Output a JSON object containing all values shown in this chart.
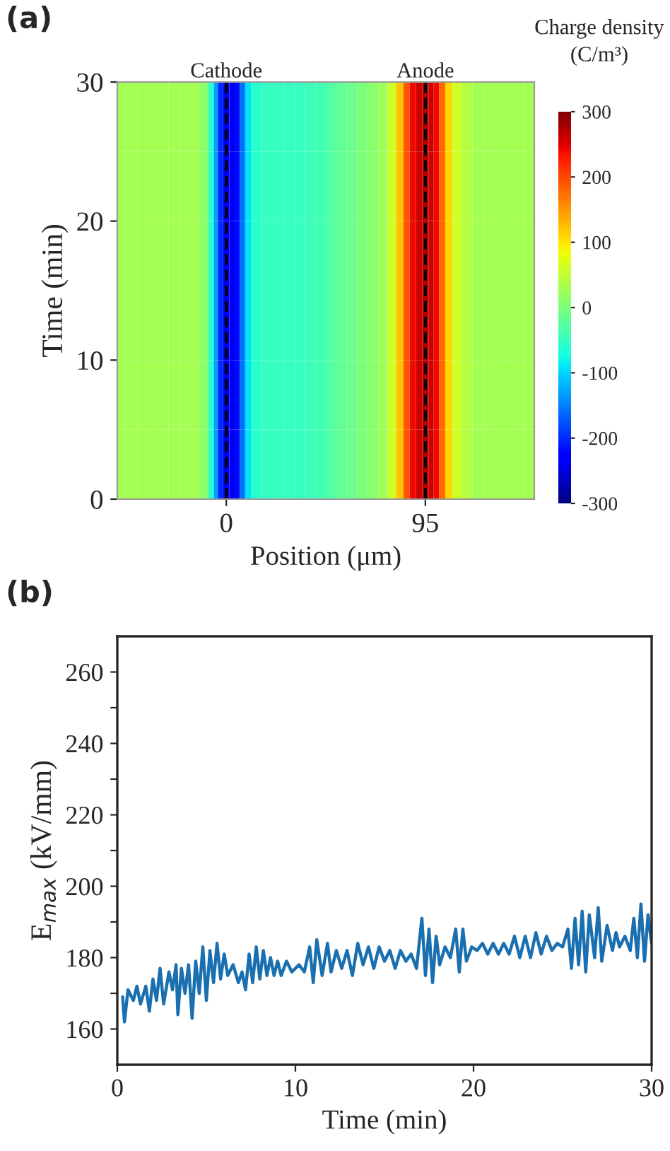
{
  "chart_data": [
    {
      "type": "heatmap",
      "annotations": [
        "(a)"
      ],
      "xlabel": "Position (μm)",
      "ylabel": "Time (min)",
      "clabel": "Charge density\n(C/m³)",
      "x": [
        -50,
        -45,
        -40,
        -35,
        -30,
        -25,
        -20,
        -15,
        -10,
        -7,
        -5,
        -3,
        0,
        3,
        5,
        8,
        10,
        14,
        20,
        25,
        30,
        35,
        40,
        45,
        50,
        55,
        60,
        65,
        70,
        75,
        79,
        83,
        86,
        89,
        92,
        95,
        98,
        100,
        103,
        106,
        110,
        115,
        120,
        125,
        130,
        135,
        140,
        145
      ],
      "cells": [
        [
          30,
          30,
          30,
          30,
          30,
          30,
          30,
          30,
          10,
          -60,
          -130,
          -200,
          -240,
          -235,
          -220,
          -160,
          -90,
          -60,
          -50,
          -50,
          -50,
          -50,
          -45,
          -40,
          -30,
          -20,
          -10,
          0,
          10,
          25,
          60,
          120,
          190,
          240,
          260,
          270,
          260,
          240,
          180,
          110,
          60,
          40,
          30,
          30,
          30,
          30,
          30,
          30
        ],
        [
          30,
          30,
          30,
          30,
          30,
          30,
          30,
          30,
          10,
          -60,
          -130,
          -200,
          -240,
          -235,
          -220,
          -160,
          -90,
          -60,
          -50,
          -50,
          -50,
          -50,
          -45,
          -40,
          -30,
          -20,
          -10,
          0,
          10,
          25,
          60,
          120,
          190,
          240,
          260,
          270,
          260,
          240,
          180,
          110,
          60,
          40,
          30,
          30,
          30,
          30,
          30,
          30
        ],
        [
          30,
          30,
          30,
          30,
          30,
          30,
          30,
          30,
          10,
          -60,
          -130,
          -200,
          -240,
          -235,
          -220,
          -160,
          -90,
          -60,
          -50,
          -50,
          -50,
          -50,
          -45,
          -40,
          -30,
          -20,
          -10,
          0,
          10,
          25,
          60,
          120,
          190,
          240,
          260,
          270,
          260,
          240,
          180,
          110,
          60,
          40,
          30,
          30,
          30,
          30,
          30,
          30
        ],
        [
          30,
          30,
          30,
          30,
          30,
          30,
          30,
          30,
          10,
          -60,
          -130,
          -200,
          -240,
          -235,
          -220,
          -160,
          -90,
          -60,
          -50,
          -50,
          -50,
          -50,
          -45,
          -40,
          -30,
          -20,
          -10,
          0,
          10,
          25,
          60,
          120,
          190,
          240,
          260,
          270,
          260,
          240,
          180,
          110,
          60,
          40,
          30,
          30,
          30,
          30,
          30,
          30
        ],
        [
          30,
          30,
          30,
          30,
          30,
          30,
          30,
          30,
          10,
          -60,
          -130,
          -200,
          -240,
          -235,
          -220,
          -160,
          -90,
          -60,
          -50,
          -50,
          -50,
          -50,
          -45,
          -40,
          -30,
          -20,
          -10,
          0,
          10,
          25,
          60,
          120,
          190,
          240,
          260,
          270,
          260,
          240,
          180,
          110,
          60,
          40,
          30,
          30,
          30,
          30,
          30,
          30
        ],
        [
          30,
          30,
          30,
          30,
          30,
          30,
          30,
          30,
          10,
          -60,
          -130,
          -200,
          -240,
          -235,
          -220,
          -160,
          -90,
          -60,
          -50,
          -50,
          -50,
          -50,
          -45,
          -40,
          -30,
          -20,
          -10,
          0,
          10,
          25,
          60,
          120,
          190,
          240,
          260,
          270,
          260,
          240,
          180,
          110,
          60,
          40,
          30,
          30,
          30,
          30,
          30,
          30
        ]
      ],
      "xlim": [
        -52,
        147
      ],
      "xticks": [
        0,
        95
      ],
      "ylim": [
        0,
        30
      ],
      "yticks": [
        0,
        10,
        20,
        30
      ],
      "clim": [
        -300,
        300
      ],
      "cticks": [
        -300,
        -200,
        -100,
        0,
        100,
        200,
        300
      ],
      "ref_lines": [
        {
          "axis": "x",
          "value": 0,
          "label": "Cathode",
          "color": "#000000",
          "line_style": "dashed"
        },
        {
          "axis": "x",
          "value": 95,
          "label": "Anode",
          "color": "#000000",
          "line_style": "dashed"
        }
      ]
    },
    {
      "type": "line",
      "annotations": [
        "(b)"
      ],
      "xlabel": "Time (min)",
      "ylabel": "E$_{max}$ (kV/mm)",
      "xlim": [
        0,
        30
      ],
      "xticks": [
        0,
        10,
        20,
        30
      ],
      "ylim": [
        150,
        270
      ],
      "yticks": [
        160,
        {
          "value": 170,
          "label": null
        },
        180,
        {
          "value": 190,
          "label": null
        },
        200,
        {
          "value": 210,
          "label": null
        },
        220,
        {
          "value": 230,
          "label": null
        },
        240,
        {
          "value": 250,
          "label": null
        },
        260
      ],
      "grid": false,
      "marker": "none",
      "line_style": "solid",
      "series": [
        {
          "color": "#1a6fb0",
          "x": [
            0.3,
            0.4,
            0.6,
            0.9,
            1.1,
            1.3,
            1.6,
            1.8,
            2.0,
            2.2,
            2.4,
            2.6,
            2.9,
            3.1,
            3.3,
            3.4,
            3.6,
            3.8,
            4.0,
            4.2,
            4.4,
            4.6,
            4.8,
            5.0,
            5.2,
            5.4,
            5.6,
            5.8,
            6.0,
            6.2,
            6.5,
            6.8,
            7.0,
            7.2,
            7.4,
            7.6,
            7.8,
            8.0,
            8.2,
            8.4,
            8.6,
            8.8,
            9.0,
            9.2,
            9.5,
            9.8,
            10.2,
            10.5,
            10.8,
            11.0,
            11.2,
            11.5,
            11.8,
            12.0,
            12.3,
            12.6,
            12.9,
            13.2,
            13.5,
            13.8,
            14.1,
            14.4,
            14.7,
            15.0,
            15.3,
            15.6,
            15.9,
            16.2,
            16.5,
            16.8,
            17.1,
            17.3,
            17.5,
            17.7,
            17.9,
            18.1,
            18.4,
            18.7,
            19.0,
            19.2,
            19.4,
            19.6,
            19.9,
            20.2,
            20.5,
            20.8,
            21.1,
            21.4,
            21.7,
            22.0,
            22.3,
            22.6,
            22.9,
            23.2,
            23.5,
            23.8,
            24.1,
            24.4,
            24.7,
            25.0,
            25.3,
            25.5,
            25.7,
            25.9,
            26.1,
            26.3,
            26.5,
            26.8,
            27.0,
            27.2,
            27.5,
            27.8,
            28.0,
            28.2,
            28.5,
            28.8,
            29.0,
            29.2,
            29.4,
            29.6,
            29.8,
            30.0
          ],
          "values": [
            169,
            162,
            171,
            168,
            172,
            167,
            172,
            165,
            174,
            168,
            177,
            167,
            176,
            171,
            178,
            164,
            177,
            170,
            178,
            163,
            179,
            170,
            183,
            168,
            182,
            173,
            184,
            174,
            181,
            175,
            178,
            173,
            176,
            171,
            181,
            173,
            183,
            174,
            182,
            175,
            180,
            175,
            179,
            175,
            179,
            176,
            178,
            176,
            183,
            173,
            185,
            175,
            184,
            176,
            182,
            177,
            182,
            175,
            184,
            178,
            183,
            177,
            183,
            179,
            182,
            177,
            182,
            179,
            181,
            177,
            191,
            175,
            188,
            173,
            186,
            178,
            183,
            180,
            188,
            176,
            188,
            179,
            183,
            182,
            184,
            181,
            184,
            181,
            184,
            181,
            186,
            180,
            186,
            180,
            187,
            181,
            186,
            182,
            184,
            183,
            188,
            177,
            191,
            178,
            193,
            176,
            192,
            180,
            194,
            179,
            189,
            182,
            187,
            183,
            186,
            182,
            191,
            180,
            195,
            179,
            192,
            184
          ]
        }
      ]
    }
  ]
}
